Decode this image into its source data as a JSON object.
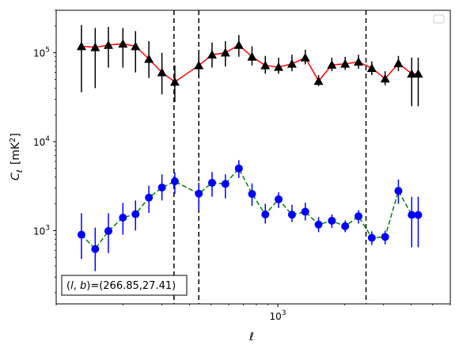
{
  "chart_data": {
    "type": "scatter",
    "xscale": "log",
    "yscale": "log",
    "xlim": [
      100,
      6000
    ],
    "ylim": [
      150,
      300000
    ],
    "xlabel": "ℓ",
    "ylabel": "C",
    "ylabel_sub": "ℓ",
    "ylabel_unit": "[mK",
    "ylabel_unit_sup": "2",
    "ylabel_unit_close": "]",
    "x_ticks": [
      {
        "value": 1000,
        "base": "10",
        "exp": "3"
      }
    ],
    "y_ticks": [
      {
        "value": 1000,
        "base": "10",
        "exp": "3"
      },
      {
        "value": 10000,
        "base": "10",
        "exp": "4"
      },
      {
        "value": 100000,
        "base": "10",
        "exp": "5"
      }
    ],
    "legend": {
      "placement": "top-right",
      "entries": []
    },
    "annotation": {
      "text": "(l, b)=(266.85,27.41)",
      "l": "l",
      "b": "b",
      "value": "=(266.85,27.41)"
    },
    "vlines": [
      340,
      440,
      2500
    ],
    "series": [
      {
        "style": "black-triangles-red-line",
        "marker": "triangle",
        "color": "#000000",
        "line_color": "#ff0000",
        "x": [
          130,
          150,
          172,
          200,
          228,
          262,
          300,
          343,
          440,
          505,
          580,
          667,
          765,
          878,
          1008,
          1158,
          1330,
          1527,
          1753,
          2013,
          2312,
          2655,
          3049,
          3500,
          4019,
          4300
        ],
        "y": [
          118000,
          115000,
          122000,
          126000,
          118000,
          85000,
          60000,
          47000,
          72000,
          95000,
          100000,
          122000,
          90000,
          72000,
          69000,
          75000,
          88000,
          48000,
          73000,
          75000,
          79000,
          67000,
          51000,
          76000,
          58000,
          58000
        ],
        "yerr_low": [
          36000,
          40000,
          68000,
          68000,
          60000,
          52000,
          34000,
          28000,
          52000,
          68000,
          70000,
          90000,
          72000,
          58000,
          58000,
          62000,
          74000,
          42000,
          62000,
          64000,
          66000,
          56000,
          43000,
          62000,
          25000,
          25000
        ],
        "yerr_high": [
          205000,
          190000,
          195000,
          190000,
          175000,
          135000,
          100000,
          72000,
          102000,
          130000,
          135000,
          158000,
          118000,
          92000,
          88000,
          95000,
          108000,
          56000,
          88000,
          90000,
          95000,
          80000,
          62000,
          92000,
          88000,
          88000
        ]
      },
      {
        "style": "blue-dots-green-dashed",
        "marker": "circle",
        "color": "#0000ff",
        "line_color": "#008000",
        "x": [
          130,
          150,
          172,
          200,
          228,
          262,
          300,
          343,
          440,
          505,
          580,
          667,
          765,
          878,
          1008,
          1158,
          1330,
          1527,
          1753,
          2013,
          2312,
          2655,
          3049,
          3500,
          4019,
          4300
        ],
        "y": [
          900,
          620,
          990,
          1400,
          1530,
          2350,
          3050,
          3580,
          2600,
          3450,
          3350,
          5000,
          2580,
          1520,
          2250,
          1510,
          1630,
          1170,
          1290,
          1120,
          1450,
          830,
          850,
          2800,
          1500,
          1500
        ],
        "yerr_low": [
          480,
          350,
          560,
          900,
          1000,
          1580,
          2180,
          2600,
          1700,
          2400,
          2300,
          3900,
          1900,
          1200,
          1800,
          1250,
          1300,
          960,
          1070,
          960,
          1200,
          690,
          700,
          2000,
          650,
          650
        ],
        "yerr_high": [
          1570,
          1080,
          1570,
          2050,
          2180,
          3200,
          4300,
          4500,
          3450,
          4550,
          4300,
          6200,
          3400,
          2000,
          2700,
          1950,
          2060,
          1420,
          1520,
          1300,
          1700,
          980,
          1000,
          3750,
          2400,
          2400
        ]
      }
    ]
  }
}
